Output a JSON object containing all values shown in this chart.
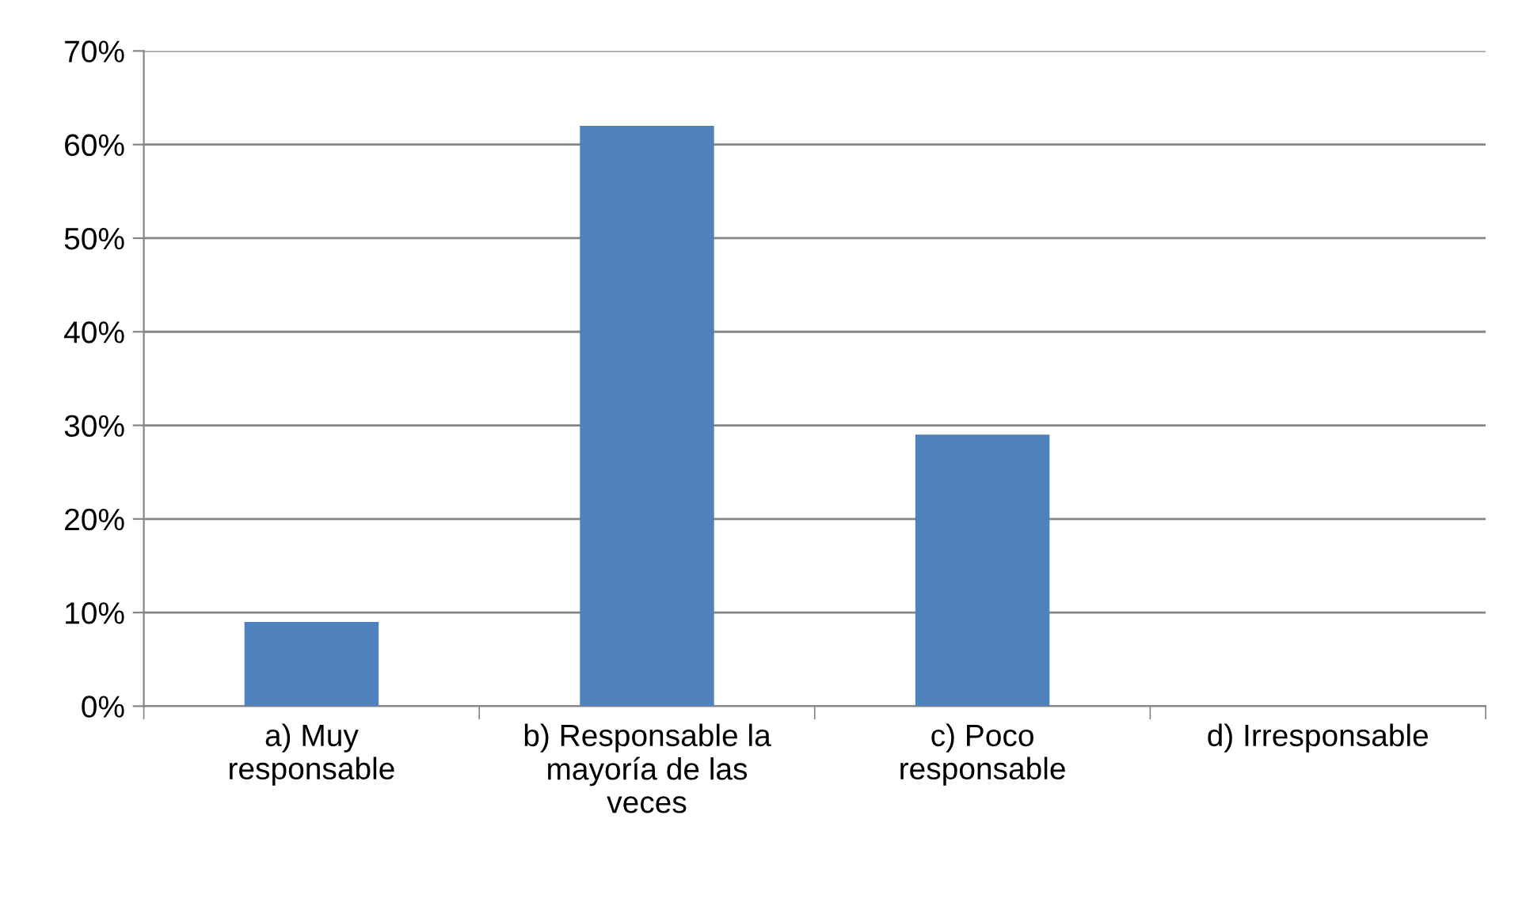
{
  "chart_data": {
    "type": "bar",
    "categories": [
      "a) Muy\nresponsable",
      "b) Responsable la\nmayoría de las\nveces",
      "c) Poco\nresponsable",
      "d) Irresponsable"
    ],
    "values": [
      9,
      62,
      29,
      0
    ],
    "color": "#4f81bd",
    "ylim": [
      0,
      70
    ],
    "yticks": [
      {
        "value": 0,
        "label": "0%"
      },
      {
        "value": 10,
        "label": "10%"
      },
      {
        "value": 20,
        "label": "20%"
      },
      {
        "value": 30,
        "label": "30%"
      },
      {
        "value": 40,
        "label": "40%"
      },
      {
        "value": 50,
        "label": "50%"
      },
      {
        "value": 60,
        "label": "60%"
      },
      {
        "value": 70,
        "label": "70%"
      }
    ],
    "grid": "y",
    "legend": false
  }
}
